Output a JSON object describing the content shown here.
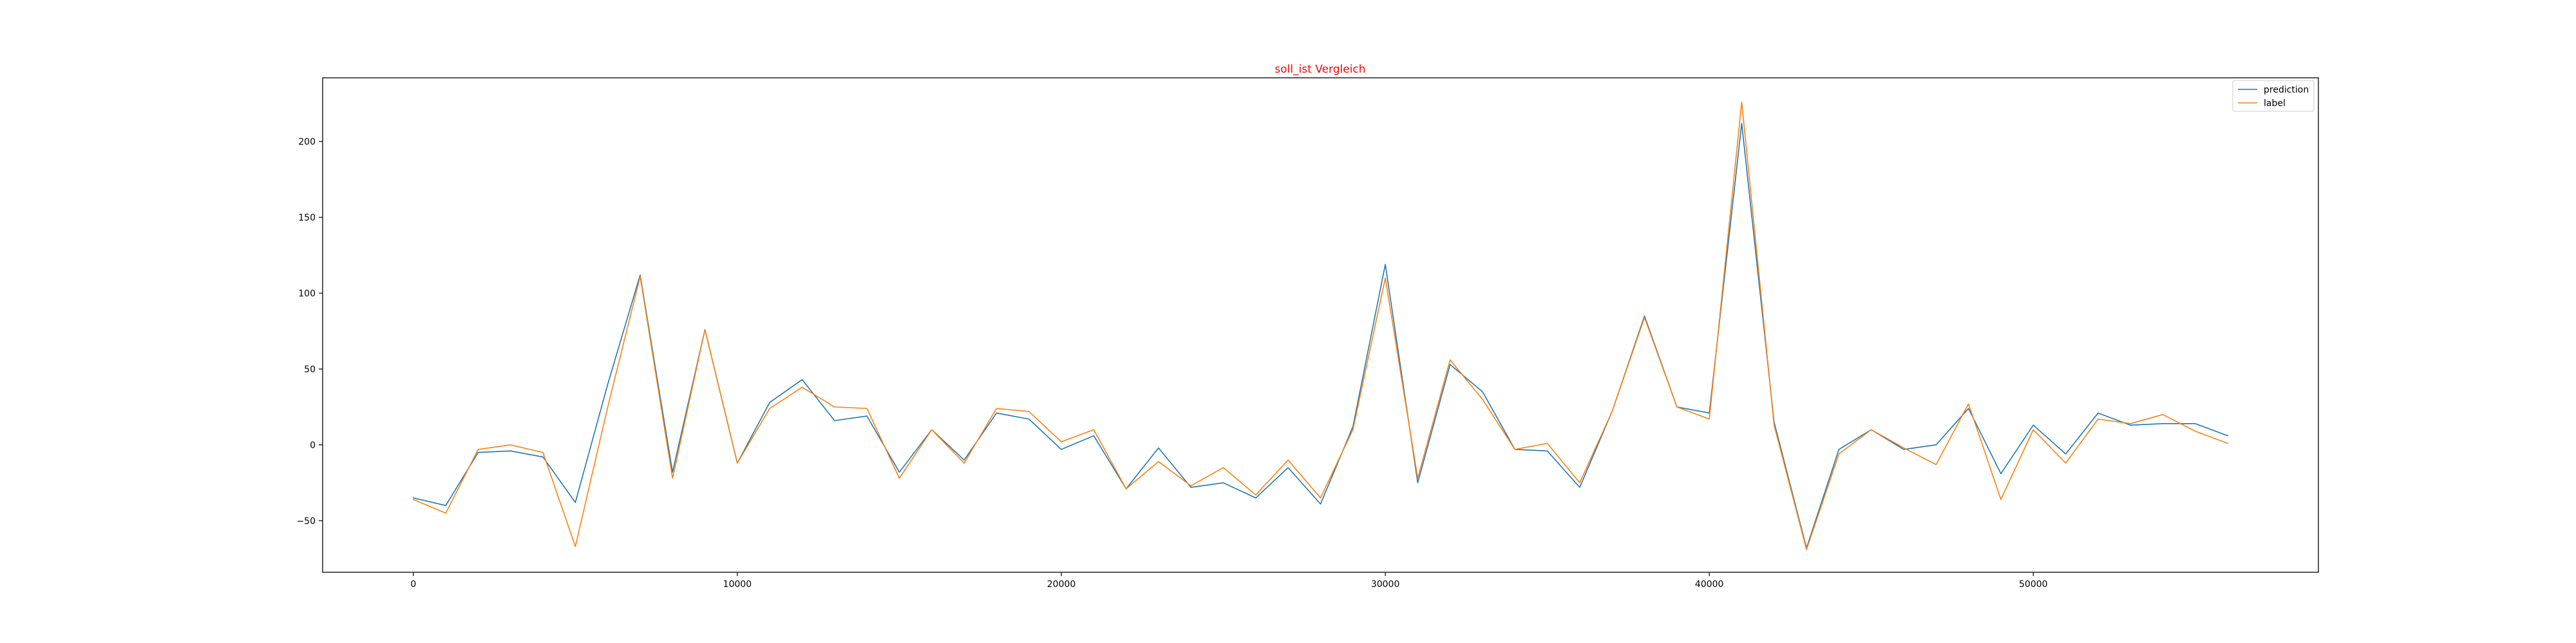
{
  "chart_data": {
    "type": "line",
    "title": "soll_ist Vergleich",
    "xlabel": "",
    "ylabel": "",
    "xlim": [
      -2800,
      58800
    ],
    "ylim": [
      -84,
      242
    ],
    "xticks": [
      0,
      10000,
      20000,
      30000,
      40000,
      50000
    ],
    "yticks": [
      -50,
      0,
      50,
      100,
      150,
      200
    ],
    "grid": false,
    "legend_position": "top-right",
    "x": [
      0,
      1000,
      2000,
      3000,
      4000,
      5000,
      6000,
      7000,
      8000,
      9000,
      10000,
      11000,
      12000,
      13000,
      14000,
      15000,
      16000,
      17000,
      18000,
      19000,
      20000,
      21000,
      22000,
      23000,
      24000,
      25000,
      26000,
      27000,
      28000,
      29000,
      30000,
      31000,
      32000,
      33000,
      34000,
      35000,
      36000,
      37000,
      38000,
      39000,
      40000,
      41000,
      42000,
      43000,
      44000,
      45000,
      46000,
      47000,
      48000,
      49000,
      50000,
      51000,
      52000,
      53000,
      54000,
      55000,
      56000
    ],
    "series": [
      {
        "name": "prediction",
        "color": "#1f77b4",
        "values": [
          -35,
          -40,
          -5,
          -4,
          -8,
          -38,
          40,
          112,
          -18,
          76,
          -12,
          28,
          43,
          16,
          19,
          -18,
          10,
          -10,
          21,
          17,
          -3,
          6,
          -29,
          -2,
          -28,
          -25,
          -35,
          -15,
          -39,
          12,
          119,
          -25,
          53,
          35,
          -3,
          -4,
          -28,
          22,
          85,
          25,
          21,
          212,
          15,
          -68,
          -3,
          10,
          -3,
          0,
          24,
          -19,
          13,
          -6,
          21,
          13,
          14,
          14,
          6
        ],
        "stroke_width": 1.6
      },
      {
        "name": "label",
        "color": "#ff7f0e",
        "values": [
          -36,
          -45,
          -3,
          0,
          -5,
          -67,
          25,
          111,
          -22,
          76,
          -12,
          24,
          38,
          25,
          24,
          -22,
          10,
          -12,
          24,
          22,
          2,
          10,
          -29,
          -11,
          -27,
          -15,
          -33,
          -10,
          -35,
          10,
          110,
          -22,
          56,
          30,
          -3,
          1,
          -25,
          22,
          84,
          25,
          17,
          226,
          13,
          -69,
          -6,
          10,
          -2,
          -13,
          27,
          -36,
          10,
          -12,
          17,
          14,
          20,
          9,
          1
        ],
        "stroke_width": 1.6
      }
    ]
  }
}
